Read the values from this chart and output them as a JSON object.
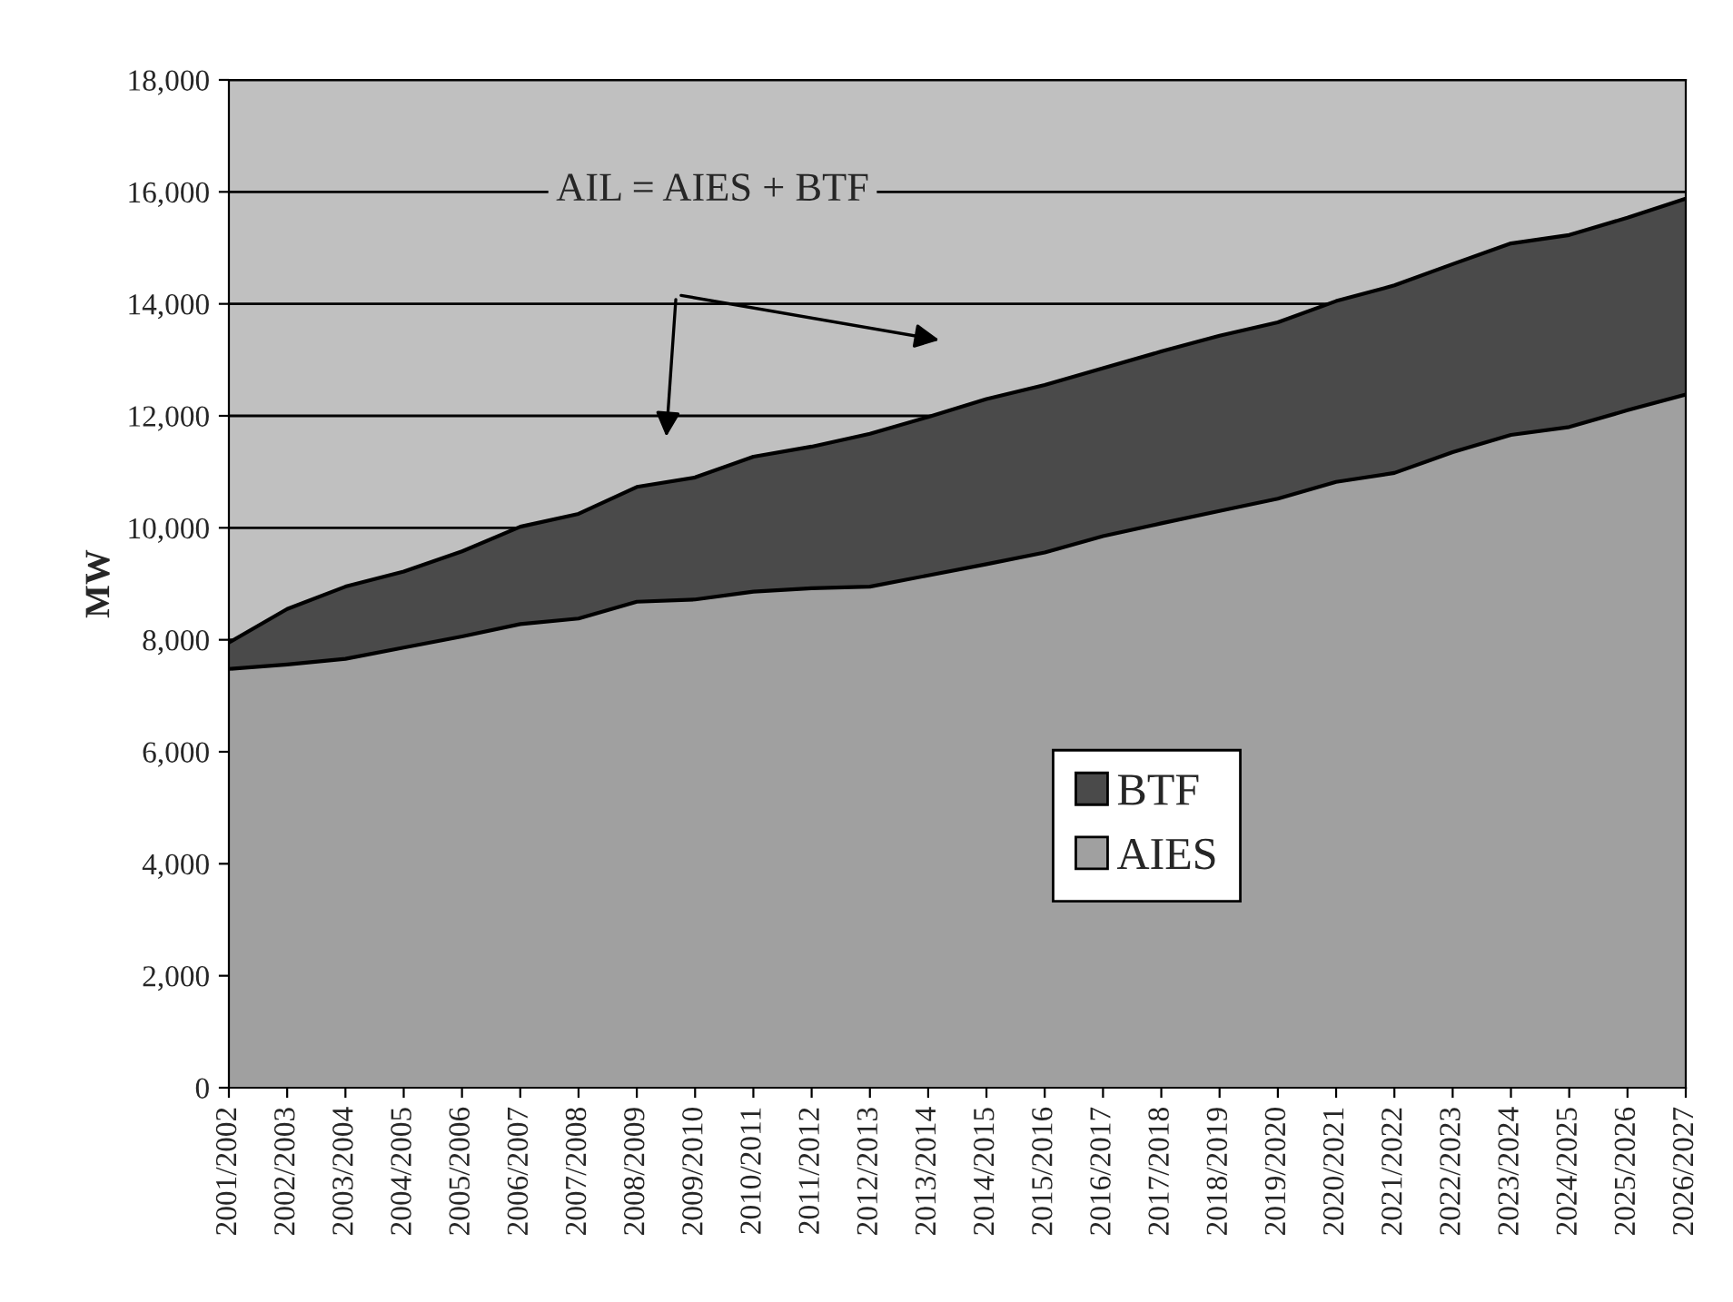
{
  "chart_data": {
    "type": "area",
    "stacked": true,
    "ylabel": "MW",
    "categories": [
      "2001/2002",
      "2002/2003",
      "2003/2004",
      "2004/2005",
      "2005/2006",
      "2006/2007",
      "2007/2008",
      "2008/2009",
      "2009/2010",
      "2010/2011",
      "2011/2012",
      "2012/2013",
      "2013/2014",
      "2014/2015",
      "2015/2016",
      "2016/2017",
      "2017/2018",
      "2018/2019",
      "2019/2020",
      "2020/2021",
      "2021/2022",
      "2022/2023",
      "2023/2024",
      "2024/2025",
      "2025/2026",
      "2026/2027"
    ],
    "series": [
      {
        "name": "AIES",
        "color": "#a0a0a0",
        "values": [
          7480,
          7560,
          7660,
          7860,
          8060,
          8280,
          8380,
          8680,
          8720,
          8860,
          8920,
          8950,
          9150,
          9350,
          9560,
          9850,
          10080,
          10300,
          10520,
          10820,
          10980,
          11350,
          11660,
          11800,
          12100,
          12380
        ]
      },
      {
        "name": "BTF",
        "color": "#4a4a4a",
        "values": [
          470,
          990,
          1290,
          1360,
          1520,
          1740,
          1870,
          2050,
          2180,
          2410,
          2530,
          2730,
          2830,
          2950,
          2990,
          3000,
          3070,
          3130,
          3150,
          3230,
          3350,
          3360,
          3420,
          3430,
          3440,
          3500
        ]
      }
    ],
    "ylim": [
      0,
      18000
    ],
    "yticks": [
      {
        "value": 0,
        "label": "0"
      },
      {
        "value": 2000,
        "label": "2,000"
      },
      {
        "value": 4000,
        "label": "4,000"
      },
      {
        "value": 6000,
        "label": "6,000"
      },
      {
        "value": 8000,
        "label": "8,000"
      },
      {
        "value": 10000,
        "label": "10,000"
      },
      {
        "value": 12000,
        "label": "12,000"
      },
      {
        "value": 14000,
        "label": "14,000"
      },
      {
        "value": 16000,
        "label": "16,000"
      },
      {
        "value": 18000,
        "label": "18,000"
      }
    ],
    "grid": "y",
    "legend": "bottom right",
    "annotations": [
      "AIL = AIES + BTF"
    ]
  }
}
